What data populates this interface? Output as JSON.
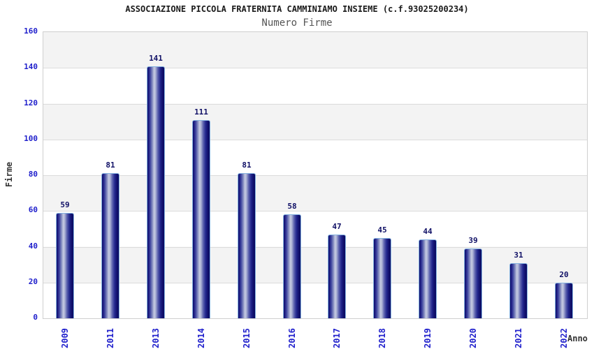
{
  "chart_data": {
    "type": "bar",
    "title": "ASSOCIAZIONE PICCOLA FRATERNITA CAMMINIAMO INSIEME (c.f.93025200234)",
    "subtitle": "Numero Firme",
    "xlabel": "Anno",
    "ylabel": "Firme",
    "categories": [
      "2009",
      "2011",
      "2013",
      "2014",
      "2015",
      "2016",
      "2017",
      "2018",
      "2019",
      "2020",
      "2021",
      "2022"
    ],
    "values": [
      59,
      81,
      141,
      111,
      81,
      58,
      47,
      45,
      44,
      39,
      31,
      20
    ],
    "ylim": [
      0,
      160
    ],
    "yticks": [
      0,
      20,
      40,
      60,
      80,
      100,
      120,
      140,
      160
    ],
    "grid": "horizontal gridlines every 20 units with alternating white/gray bands",
    "legend": "none",
    "colors": {
      "bar_dark": "#0d0d68",
      "bar_highlight": "#c6cbe2",
      "bar_outline": "#85b2e0",
      "axis_tick_text": "#2020cc",
      "value_label_text": "#101066",
      "band_gray": "#f3f3f3",
      "gridline": "#dcdcdc",
      "title_text": "#1a1a1a",
      "subtitle_text": "#555555",
      "axis_title_text": "#333333"
    }
  }
}
